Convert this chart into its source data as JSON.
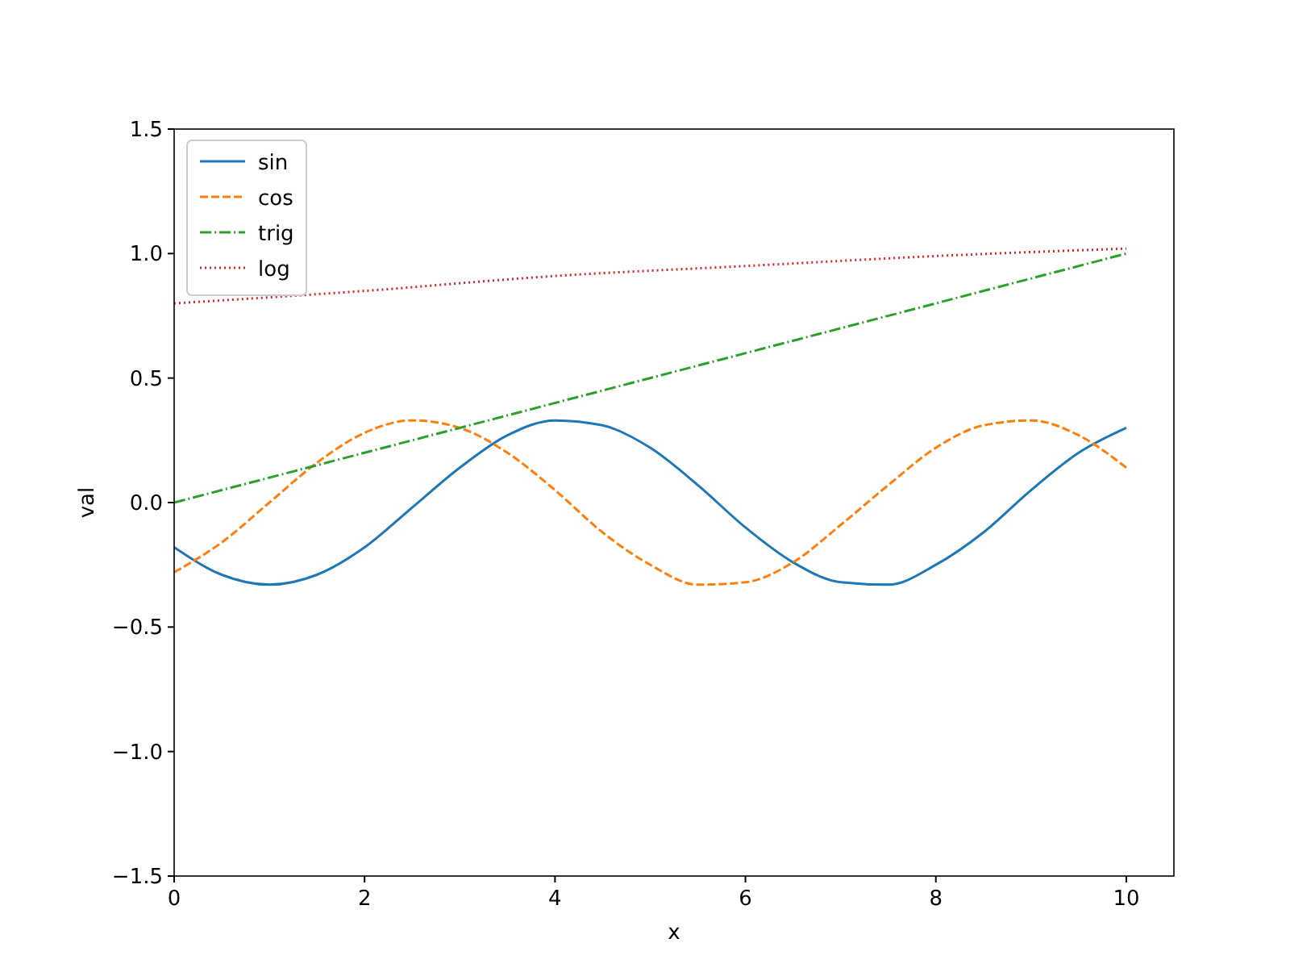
{
  "chart_data": {
    "type": "line",
    "xlabel": "x",
    "ylabel": "val",
    "x": [
      0,
      0.5,
      1,
      1.5,
      2,
      2.5,
      3,
      3.5,
      4,
      4.5,
      5,
      5.5,
      6,
      6.5,
      7,
      7.5,
      8,
      8.5,
      9,
      9.5,
      10
    ],
    "series": [
      {
        "name": "sin",
        "color": "#1f77b4",
        "line_style": "solid",
        "values": [
          -0.18,
          -0.29,
          -0.33,
          -0.29,
          -0.18,
          -0.02,
          0.14,
          0.27,
          0.33,
          0.31,
          0.22,
          0.07,
          -0.1,
          -0.24,
          -0.32,
          -0.33,
          -0.25,
          -0.12,
          0.05,
          0.2,
          0.3
        ]
      },
      {
        "name": "cos",
        "color": "#ff7f0e",
        "line_style": "dashed",
        "values": [
          -0.28,
          -0.16,
          0.0,
          0.16,
          0.28,
          0.33,
          0.3,
          0.2,
          0.05,
          -0.12,
          -0.25,
          -0.33,
          -0.32,
          -0.24,
          -0.09,
          0.07,
          0.22,
          0.31,
          0.33,
          0.27,
          0.14
        ]
      },
      {
        "name": "trig",
        "color": "#2ca02c",
        "line_style": "dashdot",
        "x": [
          0,
          10
        ],
        "values": [
          0,
          1
        ]
      },
      {
        "name": "log",
        "color": "#d62728",
        "line_style": "dotted",
        "x": [
          0,
          2,
          4,
          6,
          8,
          10
        ],
        "values": [
          0.8,
          0.85,
          0.91,
          0.95,
          0.99,
          1.02
        ]
      }
    ],
    "xlim": [
      0,
      10.5
    ],
    "xticks": [
      0,
      2,
      4,
      6,
      8,
      10
    ],
    "ylim": [
      -1.5,
      1.5
    ],
    "yticks": [
      {
        "value": -1.5,
        "label": "−1.5"
      },
      {
        "value": -1,
        "label": "−1.0"
      },
      {
        "value": -0.5,
        "label": "−0.5"
      },
      {
        "value": 0,
        "label": "0.0"
      },
      {
        "value": 0.5,
        "label": "0.5"
      },
      {
        "value": 1,
        "label": "1.0"
      },
      {
        "value": 1.5,
        "label": "1.5"
      }
    ],
    "legend": "top left"
  }
}
